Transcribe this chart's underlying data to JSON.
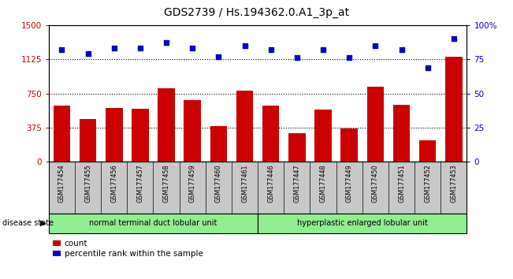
{
  "title": "GDS2739 / Hs.194362.0.A1_3p_at",
  "samples": [
    "GSM177454",
    "GSM177455",
    "GSM177456",
    "GSM177457",
    "GSM177458",
    "GSM177459",
    "GSM177460",
    "GSM177461",
    "GSM177446",
    "GSM177447",
    "GSM177448",
    "GSM177449",
    "GSM177450",
    "GSM177451",
    "GSM177452",
    "GSM177453"
  ],
  "counts": [
    620,
    470,
    590,
    585,
    810,
    680,
    390,
    780,
    620,
    310,
    575,
    365,
    820,
    625,
    240,
    1150
  ],
  "percentiles": [
    82,
    79,
    83,
    83,
    87,
    83,
    77,
    85,
    82,
    76,
    82,
    76,
    85,
    82,
    69,
    90
  ],
  "group1_label": "normal terminal duct lobular unit",
  "group2_label": "hyperplastic enlarged lobular unit",
  "group1_count": 8,
  "group2_count": 8,
  "ylim_left": [
    0,
    1500
  ],
  "ylim_right": [
    0,
    100
  ],
  "yticks_left": [
    0,
    375,
    750,
    1125,
    1500
  ],
  "yticks_right": [
    0,
    25,
    50,
    75,
    100
  ],
  "bar_color": "#cc0000",
  "dot_color": "#0000cc",
  "legend_count_label": "count",
  "legend_pct_label": "percentile rank within the sample",
  "disease_state_label": "disease state",
  "background_color": "#ffffff",
  "tick_bg_color": "#c8c8c8",
  "group_bg_color": "#90ee90",
  "dotted_hlines": [
    375,
    750,
    1125
  ]
}
